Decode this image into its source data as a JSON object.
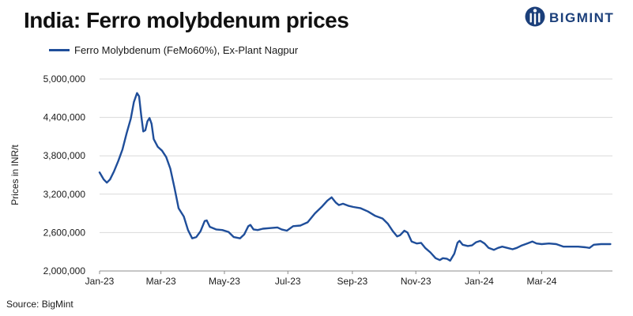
{
  "header": {
    "title": "India: Ferro molybdenum prices"
  },
  "brand": {
    "name": "BIGMINT",
    "icon": "bigmint-logo-icon",
    "color": "#1b3f7a"
  },
  "footer": {
    "source": "Source: BigMint"
  },
  "chart_data": {
    "type": "line",
    "title": "India: Ferro molybdenum prices",
    "xlabel": "",
    "ylabel": "Prices in INR/t",
    "ylim": [
      2000000,
      5000000
    ],
    "yticks": [
      2000000,
      2600000,
      3200000,
      3800000,
      4400000,
      5000000
    ],
    "ytick_labels": [
      "2,000,000",
      "2,600,000",
      "3,200,000",
      "3,800,000",
      "4,400,000",
      "5,000,000"
    ],
    "xlim": [
      "2023-01-01",
      "2024-05-08"
    ],
    "xticks": [
      "2023-01-01",
      "2023-03-01",
      "2023-05-01",
      "2023-07-01",
      "2023-09-01",
      "2023-11-01",
      "2024-01-01",
      "2024-03-01"
    ],
    "xtick_labels": [
      "Jan-23",
      "Mar-23",
      "May-23",
      "Jul-23",
      "Sep-23",
      "Nov-23",
      "Jan-24",
      "Mar-24"
    ],
    "grid": "horizontal",
    "legend_position": "top-left",
    "color": "#1f4e9a",
    "series": [
      {
        "name": "Ferro Molybdenum (FeMo60%), Ex-Plant Nagpur",
        "points": [
          [
            "2023-01-01",
            3540000
          ],
          [
            "2023-01-05",
            3430000
          ],
          [
            "2023-01-08",
            3380000
          ],
          [
            "2023-01-11",
            3430000
          ],
          [
            "2023-01-15",
            3560000
          ],
          [
            "2023-01-19",
            3720000
          ],
          [
            "2023-01-23",
            3900000
          ],
          [
            "2023-01-27",
            4150000
          ],
          [
            "2023-01-31",
            4380000
          ],
          [
            "2023-02-03",
            4640000
          ],
          [
            "2023-02-06",
            4780000
          ],
          [
            "2023-02-08",
            4730000
          ],
          [
            "2023-02-10",
            4430000
          ],
          [
            "2023-02-12",
            4180000
          ],
          [
            "2023-02-14",
            4200000
          ],
          [
            "2023-02-16",
            4340000
          ],
          [
            "2023-02-18",
            4390000
          ],
          [
            "2023-02-20",
            4300000
          ],
          [
            "2023-02-22",
            4060000
          ],
          [
            "2023-02-26",
            3940000
          ],
          [
            "2023-03-02",
            3880000
          ],
          [
            "2023-03-06",
            3780000
          ],
          [
            "2023-03-10",
            3600000
          ],
          [
            "2023-03-14",
            3300000
          ],
          [
            "2023-03-18",
            2980000
          ],
          [
            "2023-03-23",
            2850000
          ],
          [
            "2023-03-27",
            2640000
          ],
          [
            "2023-03-31",
            2510000
          ],
          [
            "2023-04-04",
            2530000
          ],
          [
            "2023-04-08",
            2620000
          ],
          [
            "2023-04-12",
            2780000
          ],
          [
            "2023-04-14",
            2790000
          ],
          [
            "2023-04-17",
            2690000
          ],
          [
            "2023-04-23",
            2650000
          ],
          [
            "2023-04-29",
            2640000
          ],
          [
            "2023-05-05",
            2610000
          ],
          [
            "2023-05-10",
            2530000
          ],
          [
            "2023-05-16",
            2510000
          ],
          [
            "2023-05-20",
            2570000
          ],
          [
            "2023-05-24",
            2700000
          ],
          [
            "2023-05-26",
            2720000
          ],
          [
            "2023-05-29",
            2650000
          ],
          [
            "2023-06-02",
            2640000
          ],
          [
            "2023-06-07",
            2660000
          ],
          [
            "2023-06-14",
            2670000
          ],
          [
            "2023-06-21",
            2680000
          ],
          [
            "2023-06-25",
            2650000
          ],
          [
            "2023-06-30",
            2630000
          ],
          [
            "2023-07-06",
            2700000
          ],
          [
            "2023-07-13",
            2710000
          ],
          [
            "2023-07-20",
            2760000
          ],
          [
            "2023-07-27",
            2900000
          ],
          [
            "2023-08-03",
            3010000
          ],
          [
            "2023-08-08",
            3100000
          ],
          [
            "2023-08-12",
            3150000
          ],
          [
            "2023-08-16",
            3070000
          ],
          [
            "2023-08-19",
            3030000
          ],
          [
            "2023-08-23",
            3050000
          ],
          [
            "2023-08-28",
            3020000
          ],
          [
            "2023-09-02",
            3000000
          ],
          [
            "2023-09-09",
            2980000
          ],
          [
            "2023-09-16",
            2930000
          ],
          [
            "2023-09-23",
            2860000
          ],
          [
            "2023-09-30",
            2820000
          ],
          [
            "2023-10-05",
            2740000
          ],
          [
            "2023-10-10",
            2620000
          ],
          [
            "2023-10-14",
            2540000
          ],
          [
            "2023-10-17",
            2560000
          ],
          [
            "2023-10-21",
            2630000
          ],
          [
            "2023-10-24",
            2600000
          ],
          [
            "2023-10-28",
            2460000
          ],
          [
            "2023-11-02",
            2430000
          ],
          [
            "2023-11-06",
            2440000
          ],
          [
            "2023-11-10",
            2360000
          ],
          [
            "2023-11-15",
            2290000
          ],
          [
            "2023-11-20",
            2200000
          ],
          [
            "2023-11-24",
            2170000
          ],
          [
            "2023-11-27",
            2200000
          ],
          [
            "2023-12-01",
            2190000
          ],
          [
            "2023-12-04",
            2160000
          ],
          [
            "2023-12-08",
            2270000
          ],
          [
            "2023-12-11",
            2440000
          ],
          [
            "2023-12-13",
            2470000
          ],
          [
            "2023-12-16",
            2410000
          ],
          [
            "2023-12-21",
            2390000
          ],
          [
            "2023-12-25",
            2400000
          ],
          [
            "2023-12-29",
            2450000
          ],
          [
            "2024-01-02",
            2470000
          ],
          [
            "2024-01-06",
            2430000
          ],
          [
            "2024-01-10",
            2360000
          ],
          [
            "2024-01-15",
            2330000
          ],
          [
            "2024-01-19",
            2360000
          ],
          [
            "2024-01-23",
            2380000
          ],
          [
            "2024-01-28",
            2360000
          ],
          [
            "2024-02-02",
            2340000
          ],
          [
            "2024-02-06",
            2360000
          ],
          [
            "2024-02-11",
            2400000
          ],
          [
            "2024-02-16",
            2430000
          ],
          [
            "2024-02-21",
            2460000
          ],
          [
            "2024-02-25",
            2430000
          ],
          [
            "2024-03-01",
            2420000
          ],
          [
            "2024-03-08",
            2430000
          ],
          [
            "2024-03-15",
            2420000
          ],
          [
            "2024-03-22",
            2380000
          ],
          [
            "2024-03-29",
            2380000
          ],
          [
            "2024-04-05",
            2380000
          ],
          [
            "2024-04-12",
            2370000
          ],
          [
            "2024-04-16",
            2360000
          ],
          [
            "2024-04-20",
            2410000
          ],
          [
            "2024-04-27",
            2420000
          ],
          [
            "2024-05-06",
            2420000
          ]
        ]
      }
    ]
  }
}
